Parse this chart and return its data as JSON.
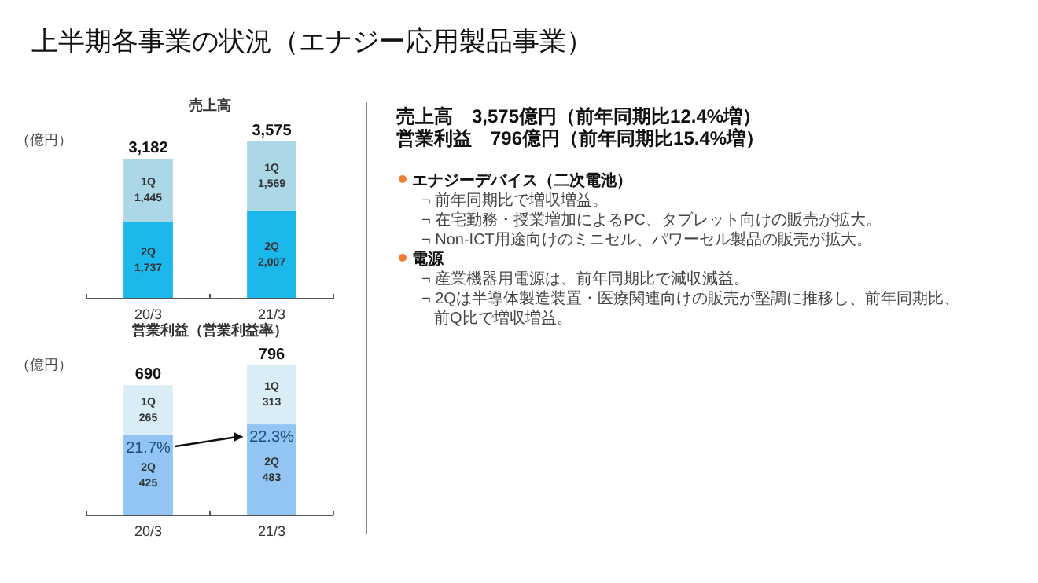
{
  "chart_data": [
    {
      "type": "other",
      "title": "上半期各事業の状況（エナジー応用製品事業）",
      "annotations": [
        "売上高　3,575億円（前年同期比12.4%増）",
        "営業利益　796億円（前年同期比15.4%増）",
        "エナジーデバイス（二次電池）",
        "¬ 前年同期比で増収増益。",
        "¬ 在宅勤務・授業増加によるPC、タブレット向けの販売が拡大。",
        "¬ Non-ICT用途向けのミニセル、パワーセル製品の販売が拡大。",
        "電源",
        "¬ 産業機器用電源は、前年同期比で減収減益。",
        "¬ 2Qは半導体製造装置・医療関連向けの販売が堅調に推移し、前年同期比、",
        "前Q比で増収増益。"
      ]
    },
    {
      "type": "bar",
      "title": "売上高",
      "ylabel": "（億円）",
      "categories": [
        "20/3",
        "21/3"
      ],
      "stacked": true,
      "tick_labels": "x",
      "totals": [
        "3,182",
        "3,575"
      ],
      "series": [
        {
          "name": "2Q",
          "color": "#1cb8ec",
          "values": [
            1737,
            2007
          ],
          "value_labels": [
            "1,737",
            "2,007"
          ]
        },
        {
          "name": "1Q",
          "color": "#abd7e6",
          "values": [
            1445,
            1569
          ],
          "value_labels": [
            "1,445",
            "1,569"
          ]
        }
      ]
    },
    {
      "type": "bar",
      "title": "営業利益（営業利益率）",
      "ylabel": "（億円）",
      "categories": [
        "20/3",
        "21/3"
      ],
      "stacked": true,
      "tick_labels": "x",
      "totals": [
        "690",
        "796"
      ],
      "annotations": [
        {
          "text": "21.7%",
          "x": "20/3",
          "y": 425
        },
        {
          "text": "22.3%",
          "x": "21/3",
          "y": 483
        }
      ],
      "series": [
        {
          "name": "2Q",
          "color": "#92c5f3",
          "values": [
            425,
            483
          ],
          "value_labels": [
            "425",
            "483"
          ]
        },
        {
          "name": "1Q",
          "color": "#d9edf6",
          "values": [
            265,
            313
          ],
          "value_labels": [
            "265",
            "313"
          ]
        }
      ]
    }
  ]
}
